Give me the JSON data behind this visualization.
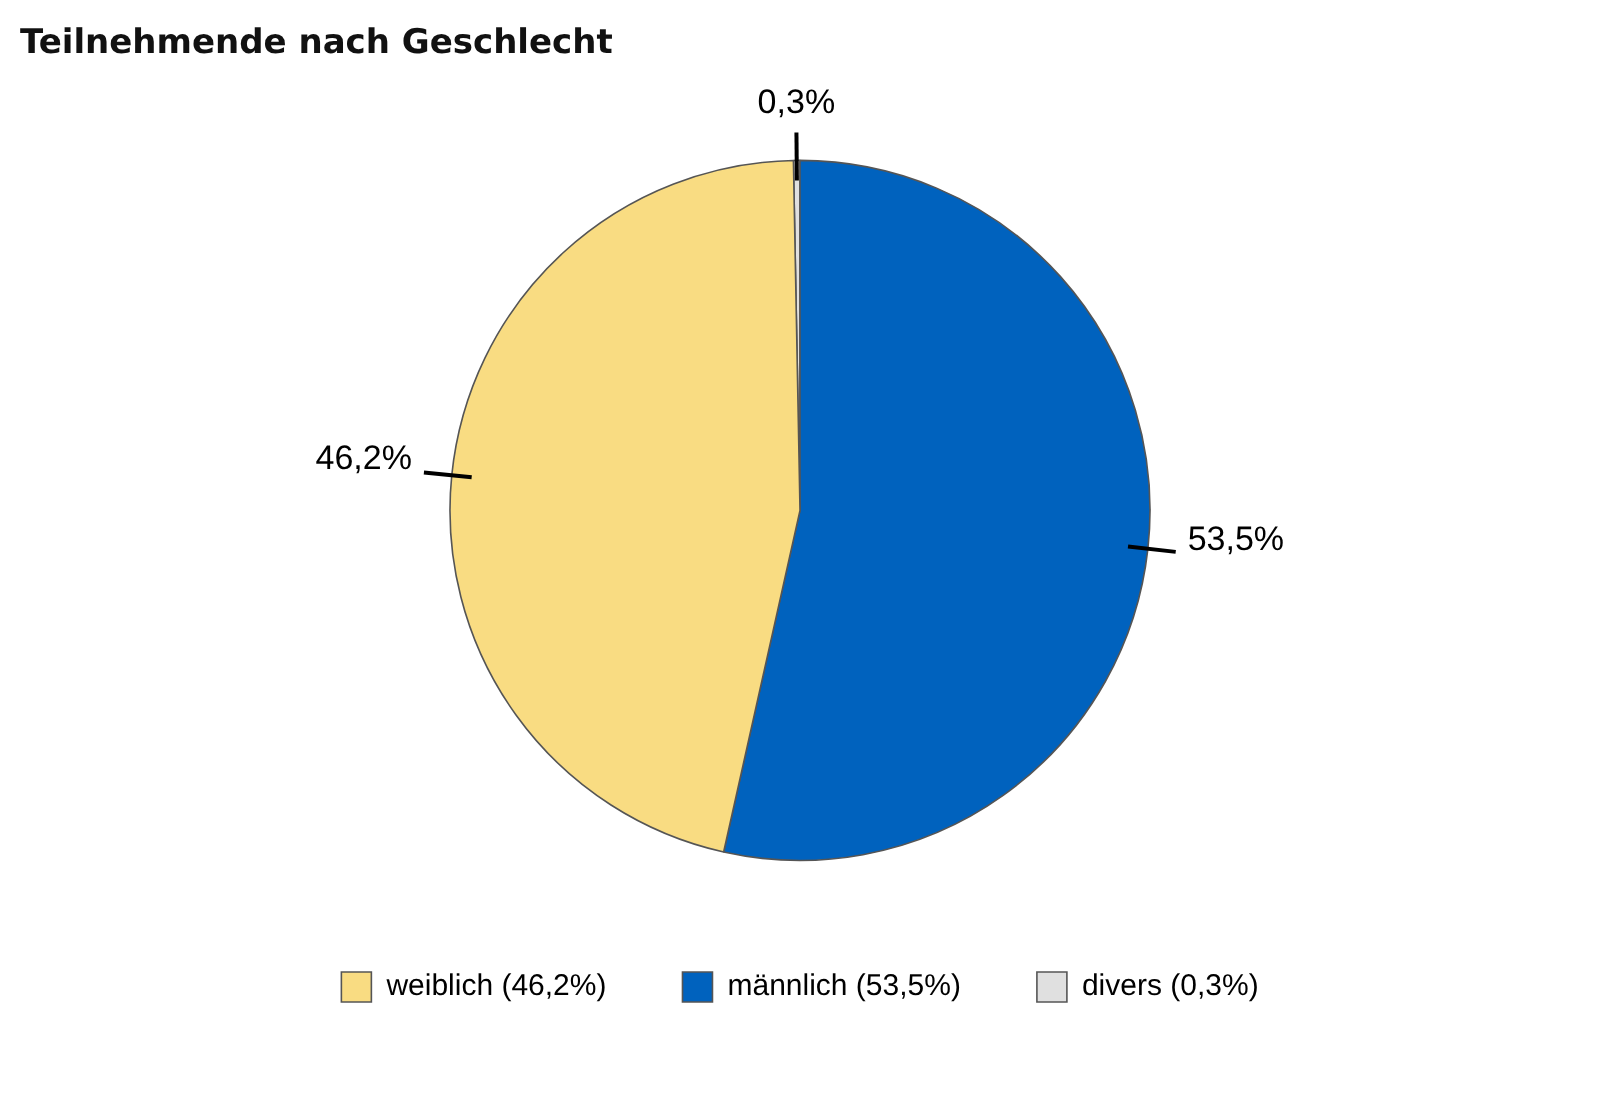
{
  "chart_data": {
    "type": "pie",
    "title": "Teilnehmende nach Geschlecht",
    "categories": [
      "weiblich (46,2%)",
      "männlich (53,5%)",
      "divers (0,3%)"
    ],
    "values": [
      46.2,
      53.5,
      0.3
    ],
    "colors": [
      "#f9dc82",
      "#0062be",
      "#e0e0e0"
    ],
    "value_labels": [
      "46,2%",
      "53,5%",
      "0,3%"
    ],
    "legend": "bottom"
  }
}
